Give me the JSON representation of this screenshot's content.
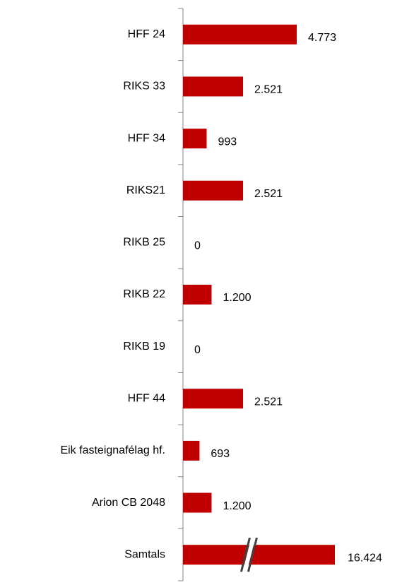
{
  "chart_data": {
    "type": "bar",
    "orientation": "horizontal",
    "color": "#c00000",
    "categories": [
      "HFF 24",
      "RIKS 33",
      "HFF 34",
      "RIKS21",
      "RIKB 25",
      "RIKB 22",
      "RIKB 19",
      "HFF 44",
      "Eik fasteignafélag hf.",
      "Arion CB 2048",
      "Samtals"
    ],
    "values": [
      4773,
      2521,
      993,
      2521,
      0,
      1200,
      0,
      2521,
      693,
      1200,
      16424
    ],
    "value_labels": [
      "4.773",
      "2.521",
      "993",
      "2.521",
      "0",
      "1.200",
      "0",
      "2.521",
      "693",
      "1.200",
      "16.424"
    ]
  }
}
